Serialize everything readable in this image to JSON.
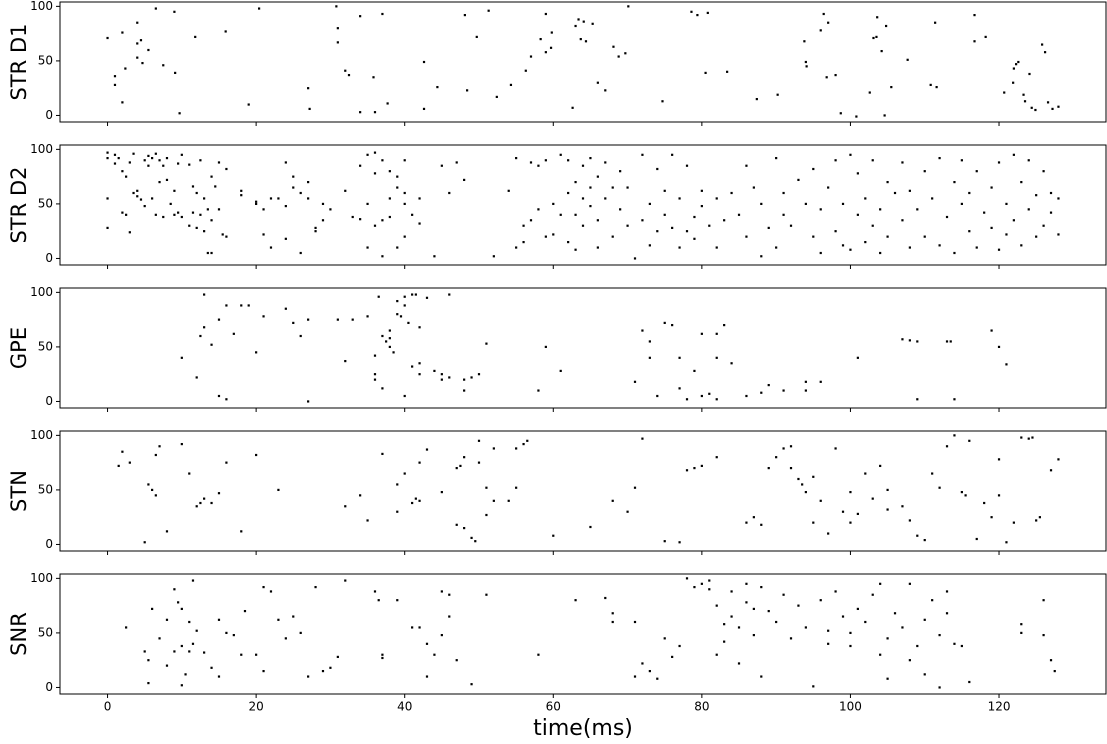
{
  "chart_data": [
    {
      "type": "scatter",
      "ylabel": "STR D1",
      "color": "#000000",
      "xlim": [
        -6.4,
        134.4
      ],
      "ylim": [
        -6,
        104
      ],
      "yticks": [
        0,
        50,
        100
      ],
      "x": [
        0,
        1,
        1,
        2,
        2,
        2.4,
        4,
        4,
        4.5,
        4,
        4.7,
        5.5,
        6.5,
        7.5,
        9,
        9.1,
        9.7,
        11.8,
        15.9,
        19,
        20.4,
        27,
        27.2,
        30.8,
        31,
        31,
        32,
        32.5,
        34,
        34,
        35.8,
        36,
        37,
        37.7,
        42.6,
        42.6,
        44.4,
        48.1,
        48.4,
        49.7,
        51.3,
        52.4,
        54.3,
        56.3,
        57,
        59,
        58.3,
        59,
        59.7,
        59.8,
        62.6,
        63,
        63.4,
        63.7,
        64.1,
        64.4,
        65.3,
        66,
        67,
        68.1,
        68.8,
        69.7,
        70.1,
        74.7,
        78.6,
        79.4,
        80.5,
        80.8,
        83.4,
        87.4,
        90.2,
        93.8,
        94,
        94.1,
        96,
        96.4,
        97,
        96.8,
        98,
        98.7,
        100.8,
        102.6,
        103.1,
        103.6,
        103.5,
        104.2,
        104.6,
        104.8,
        105.5,
        107.7,
        110.8,
        111.4,
        111.6,
        116.7,
        116.7,
        118.2,
        120.7,
        121.9,
        122,
        122.3,
        122.6,
        123.3,
        123.5,
        124.1,
        124.4,
        124.9,
        125.8,
        126.2,
        126.6,
        127.2,
        128
      ],
      "y": [
        71,
        36,
        28,
        76,
        12,
        43,
        85,
        66,
        69,
        53,
        48,
        60,
        98,
        46,
        95,
        39,
        2,
        72,
        77,
        10,
        98,
        25,
        6,
        100,
        80,
        67,
        41,
        37,
        91,
        3,
        35,
        3,
        93,
        11,
        49,
        6,
        26,
        92,
        23,
        72,
        96,
        17,
        28,
        41,
        54,
        93,
        70,
        58,
        62,
        76,
        7,
        82,
        88,
        70,
        86,
        68,
        84,
        30,
        23,
        63,
        54,
        57,
        100,
        13,
        95,
        92,
        39,
        94,
        40,
        15,
        19,
        68,
        49,
        45,
        78,
        93,
        85,
        35,
        37,
        2,
        -1,
        21,
        71,
        90,
        72,
        59,
        0,
        82,
        26,
        51,
        28,
        85,
        26,
        92,
        68,
        72,
        21,
        30,
        43,
        47,
        49,
        19,
        13,
        38,
        7,
        5,
        65,
        58,
        12,
        6,
        8
      ]
    },
    {
      "type": "scatter",
      "ylabel": "STR D2",
      "color": "#000000",
      "xlim": [
        -6.4,
        134.4
      ],
      "ylim": [
        -6,
        104
      ],
      "yticks": [
        0,
        50,
        100
      ],
      "x": [
        0,
        0,
        0,
        0,
        1,
        1,
        1.5,
        2,
        2,
        2.5,
        2.5,
        3,
        3,
        3.5,
        3.5,
        4,
        4,
        4.5,
        5,
        5,
        5.5,
        5.5,
        6,
        6,
        6.5,
        6.5,
        7,
        7,
        7.5,
        7.5,
        8,
        8,
        8.5,
        9,
        9,
        9.5,
        9.5,
        10,
        10,
        11,
        11,
        11.5,
        11.5,
        12,
        12,
        12.5,
        12.5,
        13,
        13,
        13.5,
        13.5,
        14,
        14,
        14,
        14.5,
        15,
        15,
        15.5,
        16,
        16,
        18,
        18,
        20,
        20,
        21,
        21,
        22,
        22,
        23,
        24,
        24,
        24,
        25,
        25,
        26,
        26,
        27,
        27,
        28,
        28,
        29,
        29,
        30,
        32,
        33,
        34,
        34,
        35,
        35,
        35,
        36,
        36,
        36,
        37,
        37,
        37,
        38,
        38,
        38,
        39,
        39,
        39,
        40,
        40,
        40,
        40,
        41,
        42,
        42,
        44,
        45,
        46,
        47,
        48,
        52,
        54,
        55,
        55,
        56,
        56,
        57,
        57,
        58,
        58,
        59,
        59,
        60,
        60,
        61,
        61,
        62,
        62,
        62,
        63,
        63,
        63,
        64,
        64,
        64,
        65,
        65,
        65,
        66,
        66,
        66,
        67,
        67,
        68,
        68,
        69,
        69,
        70,
        70,
        71,
        72,
        72,
        73,
        73,
        74,
        74,
        75,
        75,
        76,
        76,
        77,
        77,
        78,
        78,
        79,
        79,
        80,
        80,
        81,
        82,
        82,
        83,
        84,
        85,
        86,
        86,
        87,
        88,
        88,
        89,
        90,
        90,
        91,
        91,
        92,
        93,
        94,
        95,
        95,
        96,
        96,
        97,
        98,
        98,
        99,
        99,
        100,
        100,
        101,
        101,
        102,
        102,
        103,
        103,
        104,
        104,
        105,
        105,
        106,
        107,
        107,
        108,
        108,
        109,
        110,
        110,
        111,
        112,
        112,
        113,
        114,
        114,
        115,
        115,
        116,
        116,
        117,
        117,
        118,
        119,
        119,
        120,
        120,
        121,
        121,
        122,
        122,
        123,
        123,
        124,
        124,
        125,
        125,
        126,
        126,
        127,
        127,
        128,
        128
      ],
      "y": [
        97,
        92,
        55,
        28,
        95,
        87,
        92,
        80,
        42,
        75,
        40,
        24,
        88,
        60,
        96,
        62,
        57,
        54,
        90,
        48,
        85,
        94,
        92,
        55,
        40,
        96,
        90,
        70,
        85,
        38,
        72,
        92,
        50,
        40,
        62,
        87,
        42,
        95,
        38,
        86,
        30,
        66,
        42,
        60,
        28,
        90,
        40,
        55,
        25,
        45,
        5,
        5,
        35,
        75,
        66,
        88,
        45,
        22,
        82,
        20,
        58,
        62,
        52,
        50,
        45,
        22,
        55,
        10,
        55,
        88,
        48,
        18,
        75,
        65,
        60,
        5,
        70,
        55,
        28,
        25,
        35,
        50,
        45,
        62,
        38,
        36,
        85,
        95,
        50,
        10,
        78,
        30,
        97,
        90,
        35,
        2,
        38,
        55,
        80,
        65,
        75,
        10,
        90,
        50,
        60,
        20,
        40,
        32,
        55,
        2,
        85,
        60,
        88,
        72,
        2,
        62,
        92,
        10,
        15,
        30,
        88,
        35,
        45,
        85,
        90,
        20,
        50,
        22,
        95,
        40,
        60,
        15,
        90,
        70,
        40,
        8,
        85,
        55,
        30,
        92,
        65,
        48,
        10,
        75,
        35,
        55,
        88,
        65,
        20,
        45,
        80,
        30,
        65,
        0,
        35,
        95,
        12,
        50,
        82,
        25,
        62,
        40,
        95,
        28,
        10,
        55,
        85,
        25,
        38,
        18,
        62,
        48,
        30,
        10,
        55,
        35,
        60,
        40,
        85,
        20,
        65,
        50,
        2,
        28,
        92,
        10,
        40,
        60,
        30,
        72,
        50,
        82,
        20,
        45,
        5,
        65,
        25,
        90,
        50,
        12,
        95,
        8,
        40,
        78,
        15,
        55,
        30,
        90,
        5,
        45,
        70,
        20,
        60,
        35,
        88,
        10,
        62,
        45,
        80,
        20,
        55,
        12,
        92,
        38,
        70,
        5,
        50,
        90,
        25,
        60,
        80,
        10,
        42,
        65,
        28,
        88,
        8,
        50,
        22,
        95,
        35,
        70,
        12,
        45,
        90,
        58,
        20,
        80,
        30,
        42,
        60,
        22,
        55
      ]
    },
    {
      "type": "scatter",
      "ylabel": "GPE",
      "color": "#000000",
      "xlim": [
        -6.4,
        134.4
      ],
      "ylim": [
        -6,
        104
      ],
      "yticks": [
        0,
        50,
        100
      ],
      "x": [
        10,
        12,
        12.5,
        13,
        13,
        14,
        15,
        15,
        16,
        16,
        17,
        18,
        19,
        20,
        21,
        24,
        25,
        26,
        27,
        27,
        31,
        32,
        33,
        35,
        36,
        36,
        36,
        36.5,
        37,
        37,
        37.5,
        38,
        38,
        38,
        38.5,
        39,
        39,
        39.5,
        40,
        40,
        40,
        40.5,
        41,
        41,
        41.5,
        42,
        42,
        42,
        43,
        44,
        45,
        45,
        46,
        46,
        48,
        48,
        49,
        50,
        51,
        58,
        59,
        61,
        71,
        72,
        73,
        73,
        74,
        75,
        76,
        77,
        77,
        78,
        79,
        80,
        80,
        81,
        82,
        82,
        82,
        83,
        84,
        86,
        88,
        89,
        91,
        94,
        94,
        96,
        101,
        107,
        108,
        109,
        109,
        113,
        113.5,
        114,
        119,
        120,
        121
      ],
      "y": [
        40,
        22,
        60,
        68,
        98,
        52,
        5,
        75,
        88,
        2,
        62,
        88,
        88,
        45,
        78,
        85,
        72,
        60,
        0,
        75,
        75,
        37,
        75,
        78,
        20,
        25,
        42,
        96,
        12,
        60,
        55,
        58,
        50,
        65,
        45,
        80,
        92,
        78,
        5,
        88,
        96,
        72,
        98,
        32,
        98,
        25,
        35,
        68,
        95,
        28,
        20,
        25,
        22,
        98,
        20,
        10,
        22,
        25,
        53,
        10,
        50,
        28,
        18,
        65,
        40,
        55,
        5,
        72,
        70,
        40,
        12,
        2,
        28,
        5,
        62,
        7,
        40,
        62,
        2,
        70,
        35,
        5,
        8,
        15,
        10,
        10,
        18,
        18,
        40,
        57,
        56,
        55,
        2,
        55,
        55,
        2,
        65,
        50,
        34
      ]
    },
    {
      "type": "scatter",
      "ylabel": "STN",
      "color": "#000000",
      "xlim": [
        -6.4,
        134.4
      ],
      "ylim": [
        -6,
        104
      ],
      "yticks": [
        0,
        50,
        100
      ],
      "x": [
        1.5,
        2,
        3,
        5,
        5.5,
        6,
        6.5,
        6.5,
        7,
        8,
        10,
        11,
        12,
        12.5,
        13,
        14,
        15,
        16,
        18,
        20,
        23,
        32,
        34,
        35,
        37,
        39,
        39,
        40,
        41,
        41.5,
        42,
        42,
        43,
        45,
        47,
        47.5,
        48,
        47,
        48,
        49,
        49.5,
        50,
        50,
        51,
        51,
        52,
        52,
        54,
        55,
        55,
        56,
        56.5,
        60,
        65,
        68,
        70,
        71,
        72,
        75,
        77,
        78,
        79,
        80,
        82,
        86,
        87,
        88,
        89,
        90,
        91,
        92,
        92,
        93,
        93.5,
        94,
        95,
        95,
        96,
        97,
        98,
        99,
        100,
        100,
        101,
        102,
        103,
        104,
        105,
        105,
        107,
        108,
        109,
        110,
        111,
        112,
        113,
        114,
        115,
        115.5,
        116,
        117,
        118,
        119,
        120,
        120,
        121,
        122,
        123,
        124,
        124.5,
        125,
        125.5,
        127,
        128
      ],
      "y": [
        72,
        85,
        75,
        2,
        55,
        50,
        45,
        82,
        90,
        12,
        92,
        65,
        35,
        38,
        42,
        38,
        47,
        75,
        12,
        82,
        50,
        35,
        45,
        22,
        83,
        30,
        55,
        65,
        38,
        42,
        40,
        75,
        87,
        48,
        70,
        72,
        80,
        18,
        15,
        6,
        3,
        95,
        75,
        52,
        27,
        40,
        88,
        40,
        88,
        52,
        92,
        95,
        8,
        16,
        40,
        30,
        52,
        97,
        3,
        2,
        68,
        70,
        72,
        80,
        20,
        25,
        18,
        70,
        80,
        88,
        90,
        70,
        60,
        55,
        48,
        20,
        62,
        40,
        10,
        88,
        30,
        48,
        20,
        28,
        65,
        42,
        72,
        32,
        50,
        35,
        22,
        8,
        4,
        65,
        52,
        90,
        100,
        48,
        45,
        95,
        5,
        38,
        25,
        45,
        78,
        2,
        20,
        98,
        97,
        98,
        22,
        25,
        68,
        78
      ]
    },
    {
      "type": "scatter",
      "ylabel": "SNR",
      "xlabel": "time(ms)",
      "color": "#000000",
      "xlim": [
        -6.4,
        134.4
      ],
      "ylim": [
        -6,
        104
      ],
      "yticks": [
        0,
        50,
        100
      ],
      "xticks": [
        0,
        20,
        40,
        60,
        80,
        100,
        120
      ],
      "x": [
        2.5,
        5,
        5.5,
        5.5,
        6,
        7,
        8,
        8,
        9,
        9,
        9.5,
        10,
        10,
        10,
        10.5,
        11,
        11,
        11.5,
        11.5,
        12,
        13,
        14,
        15,
        15,
        16,
        17,
        18,
        18.5,
        20,
        21,
        21,
        22,
        23,
        24,
        25,
        26,
        27,
        28,
        29,
        30,
        31,
        32,
        36,
        36.5,
        37,
        37,
        39,
        41,
        42,
        43,
        43,
        44,
        45,
        45,
        46,
        46,
        47,
        49,
        51,
        58,
        63,
        67,
        68,
        68,
        71,
        71,
        72,
        73,
        74,
        75,
        76,
        77,
        78,
        79,
        80,
        81,
        81,
        82,
        82,
        83,
        83,
        84,
        84,
        85,
        85,
        86,
        86,
        87,
        87,
        88,
        88,
        89,
        90,
        91,
        92,
        93,
        94,
        95,
        96,
        97,
        97,
        98,
        99,
        100,
        100,
        101,
        102,
        103,
        104,
        104,
        105,
        105,
        106,
        107,
        108,
        108,
        109,
        110,
        110,
        111,
        112,
        112,
        113,
        113,
        114,
        115,
        116,
        123,
        123,
        126,
        126,
        127,
        127.5
      ],
      "y": [
        55,
        33,
        25,
        4,
        72,
        45,
        62,
        20,
        33,
        90,
        78,
        72,
        38,
        2,
        12,
        60,
        33,
        98,
        40,
        52,
        32,
        18,
        62,
        10,
        50,
        48,
        30,
        70,
        30,
        15,
        92,
        88,
        62,
        45,
        65,
        50,
        10,
        92,
        15,
        18,
        28,
        98,
        88,
        80,
        30,
        27,
        80,
        55,
        55,
        40,
        10,
        30,
        48,
        88,
        65,
        85,
        25,
        3,
        85,
        30,
        80,
        82,
        68,
        60,
        60,
        10,
        22,
        15,
        8,
        45,
        28,
        38,
        100,
        92,
        95,
        90,
        98,
        75,
        30,
        58,
        42,
        65,
        88,
        55,
        22,
        78,
        95,
        72,
        48,
        92,
        10,
        70,
        60,
        85,
        45,
        75,
        55,
        1,
        80,
        52,
        40,
        88,
        65,
        50,
        38,
        72,
        60,
        85,
        30,
        95,
        8,
        45,
        68,
        55,
        95,
        25,
        38,
        62,
        12,
        80,
        48,
        0,
        68,
        88,
        40,
        38,
        5,
        50,
        58,
        80,
        48,
        25,
        15
      ]
    }
  ]
}
